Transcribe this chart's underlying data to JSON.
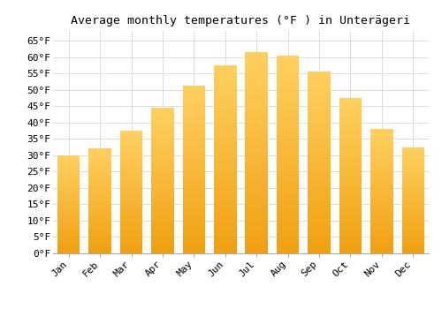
{
  "months": [
    "Jan",
    "Feb",
    "Mar",
    "Apr",
    "May",
    "Jun",
    "Jul",
    "Aug",
    "Sep",
    "Oct",
    "Nov",
    "Dec"
  ],
  "values": [
    30.0,
    32.2,
    37.4,
    44.6,
    51.4,
    57.6,
    61.5,
    60.4,
    55.6,
    47.5,
    38.1,
    32.5
  ],
  "bar_color_top": "#FFD060",
  "bar_color_bottom": "#F0A010",
  "title": "Average monthly temperatures (°F ) in Unterägeri",
  "ylim": [
    0,
    68
  ],
  "yticks": [
    0,
    5,
    10,
    15,
    20,
    25,
    30,
    35,
    40,
    45,
    50,
    55,
    60,
    65
  ],
  "ytick_labels": [
    "0°F",
    "5°F",
    "10°F",
    "15°F",
    "20°F",
    "25°F",
    "30°F",
    "35°F",
    "40°F",
    "45°F",
    "50°F",
    "55°F",
    "60°F",
    "65°F"
  ],
  "background_color": "#ffffff",
  "grid_color": "#dddddd",
  "title_fontsize": 9.5,
  "tick_fontsize": 8,
  "font_family": "monospace"
}
